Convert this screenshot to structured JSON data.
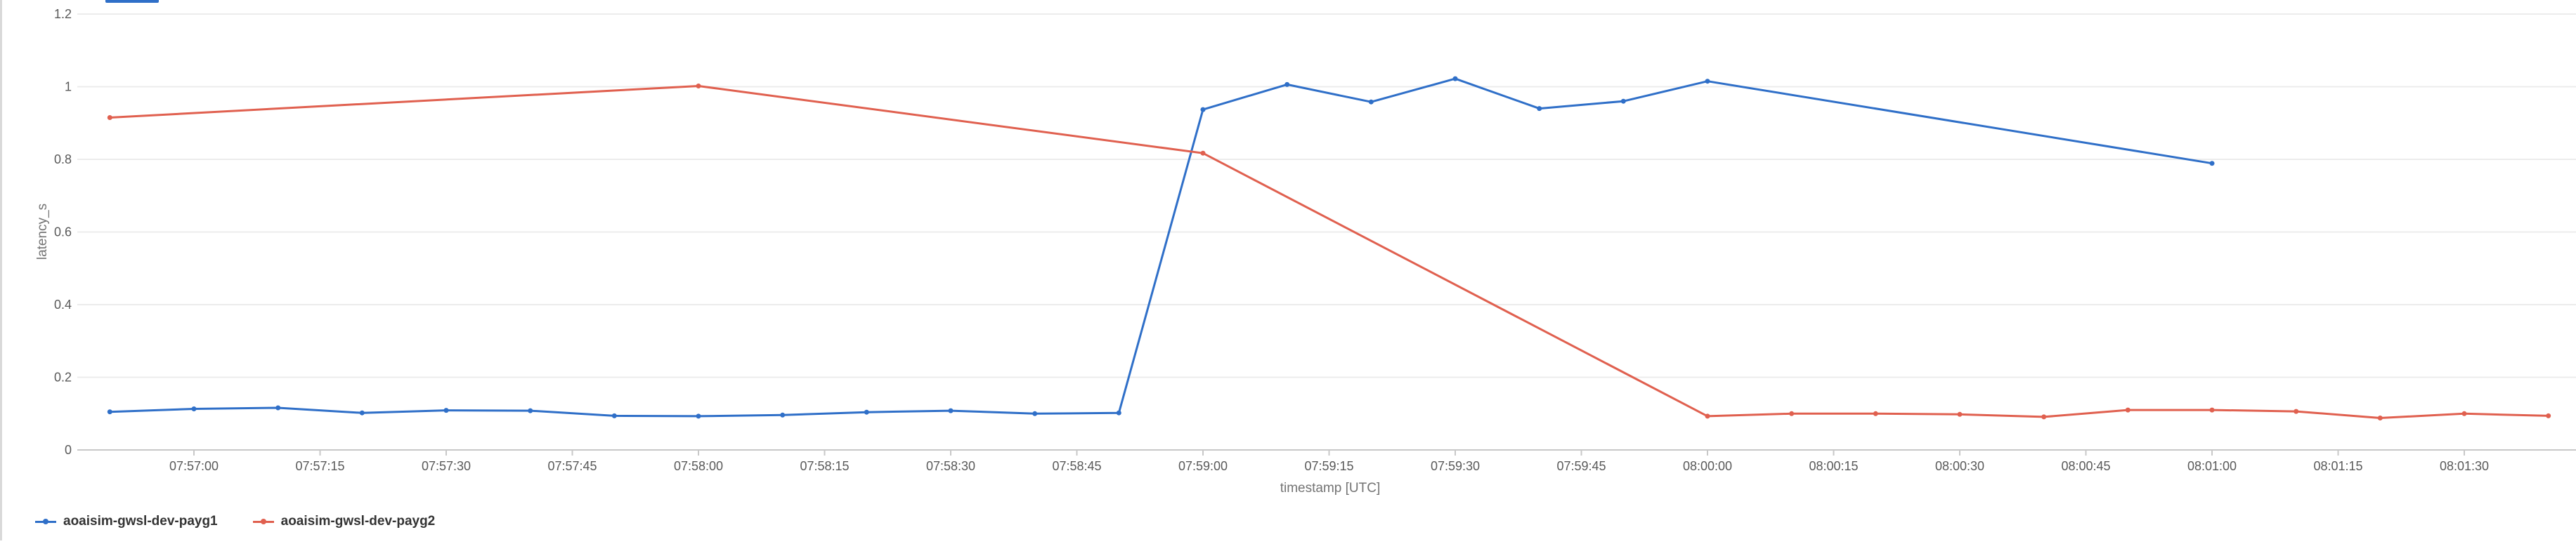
{
  "chart_data": {
    "type": "line",
    "title": "",
    "xlabel": "timestamp [UTC]",
    "ylabel": "latency_s",
    "ylim": [
      0,
      1.2
    ],
    "yticks": [
      "0",
      "0.2",
      "0.4",
      "0.6",
      "0.8",
      "1",
      "1.2"
    ],
    "xlim": [
      "07:56:50",
      "08:01:40"
    ],
    "xticks": [
      "07:57:00",
      "07:57:15",
      "07:57:30",
      "07:57:45",
      "07:58:00",
      "07:58:15",
      "07:58:30",
      "07:58:45",
      "07:59:00",
      "07:59:15",
      "07:59:30",
      "07:59:45",
      "08:00:00",
      "08:00:15",
      "08:00:30",
      "08:00:45",
      "08:01:00",
      "08:01:15",
      "08:01:30"
    ],
    "grid": "horizontal",
    "legend_position": "bottom-left",
    "series": [
      {
        "name": "aoaisim-gwsl-dev-payg1",
        "color": "#2f6fc8",
        "x": [
          "07:56:50",
          "07:57:00",
          "07:57:10",
          "07:57:20",
          "07:57:30",
          "07:57:40",
          "07:57:50",
          "07:58:00",
          "07:58:10",
          "07:58:20",
          "07:58:30",
          "07:58:40",
          "07:58:50",
          "07:59:00",
          "07:59:10",
          "07:59:20",
          "07:59:30",
          "07:59:40",
          "07:59:50",
          "08:00:00",
          "08:01:00"
        ],
        "y": [
          0.105,
          0.113,
          0.116,
          0.102,
          0.109,
          0.108,
          0.094,
          0.093,
          0.096,
          0.104,
          0.108,
          0.1,
          0.102,
          0.937,
          1.006,
          0.958,
          1.022,
          0.94,
          0.96,
          1.015,
          0.789
        ]
      },
      {
        "name": "aoaisim-gwsl-dev-payg2",
        "color": "#e0604f",
        "x": [
          "07:56:50",
          "07:58:00",
          "07:59:00",
          "08:00:00",
          "08:00:10",
          "08:00:20",
          "08:00:30",
          "08:00:40",
          "08:00:50",
          "08:01:00",
          "08:01:10",
          "08:01:20",
          "08:01:30",
          "08:01:40"
        ],
        "y": [
          0.915,
          1.002,
          0.817,
          0.093,
          0.1,
          0.1,
          0.098,
          0.091,
          0.11,
          0.11,
          0.106,
          0.088,
          0.1,
          0.094
        ]
      }
    ]
  }
}
